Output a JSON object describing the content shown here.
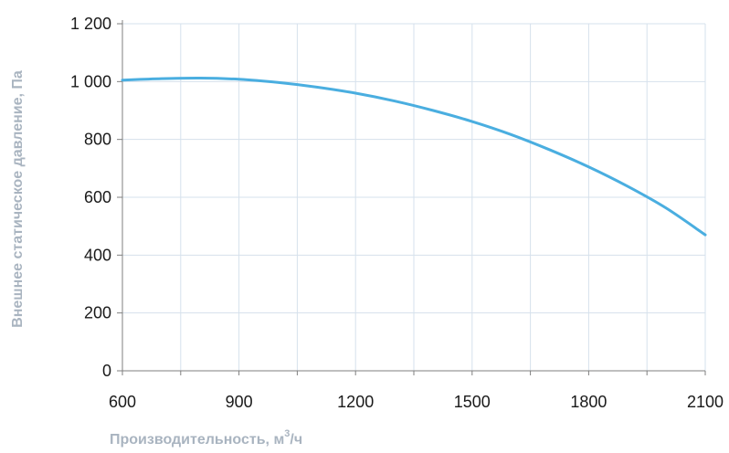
{
  "chart_data": {
    "type": "line",
    "xlabel_main": "Производительность",
    "xlabel_unit_base": ", м",
    "xlabel_unit_sup": "3",
    "xlabel_unit_tail": "/ч",
    "ylabel_main": "Внешнее статическое давление",
    "ylabel_unit": ", Па",
    "xlim": [
      600,
      2100
    ],
    "ylim": [
      0,
      1200
    ],
    "x_ticks": [
      "600",
      "900",
      "1200",
      "1500",
      "1800",
      "2100"
    ],
    "y_ticks": [
      "0",
      "200",
      "400",
      "600",
      "800",
      "1 000",
      "1 200"
    ],
    "x_tick_values": [
      600,
      900,
      1200,
      1500,
      1800,
      2100
    ],
    "y_tick_values": [
      0,
      200,
      400,
      600,
      800,
      1000,
      1200
    ],
    "x_minor_step": 150,
    "grid": true,
    "series": [
      {
        "x": [
          600,
          700,
          800,
          900,
          1000,
          1100,
          1200,
          1300,
          1400,
          1500,
          1600,
          1700,
          1800,
          1900,
          2000,
          2100
        ],
        "y": [
          1005,
          1010,
          1012,
          1008,
          997,
          981,
          960,
          933,
          900,
          862,
          817,
          764,
          705,
          638,
          562,
          470
        ]
      }
    ],
    "colors": {
      "line": "#4aaee0",
      "grid": "#d6e1ec",
      "axis": "#7f7f7f"
    }
  }
}
